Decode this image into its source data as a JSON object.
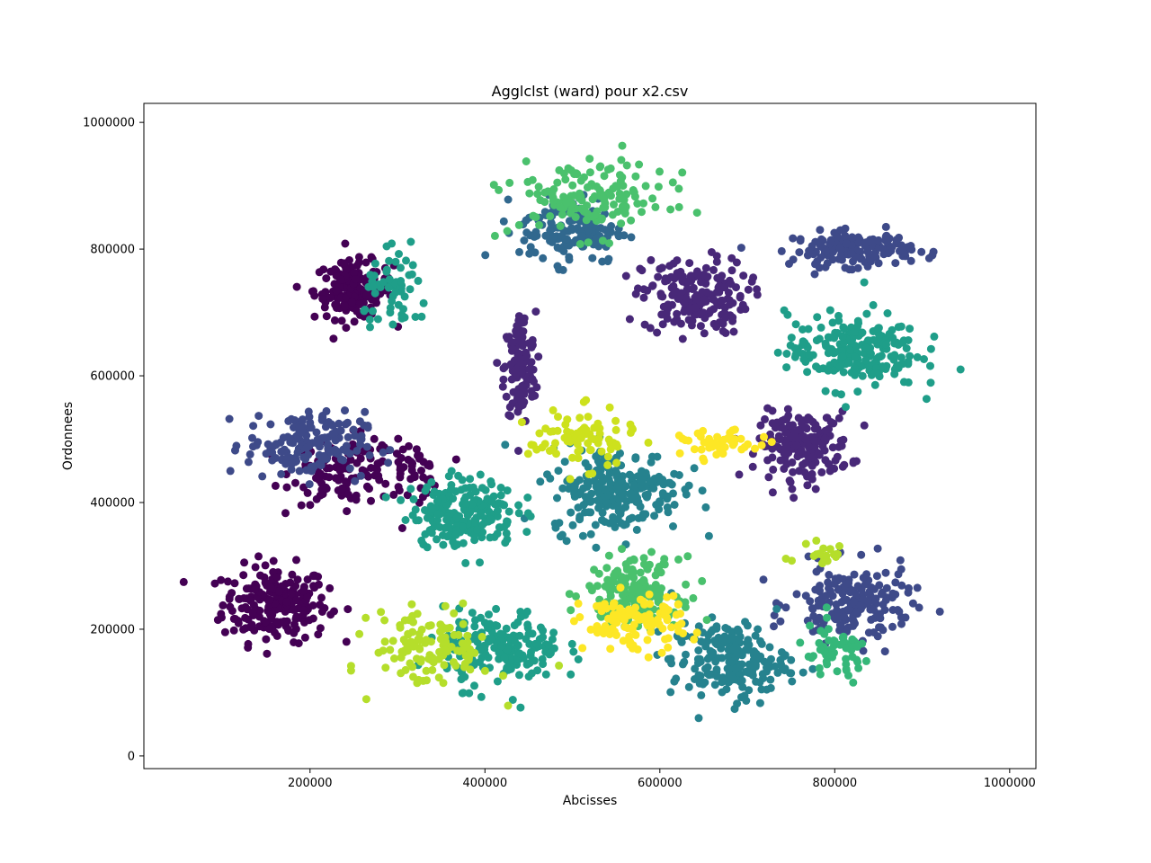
{
  "chart_data": {
    "type": "scatter",
    "title": "Agglclst (ward) pour x2.csv",
    "xlabel": "Abcisses",
    "ylabel": "Ordonnees",
    "xlim": [
      10000,
      1030000
    ],
    "ylim": [
      -20000,
      1030000
    ],
    "x_ticks": [
      200000,
      400000,
      600000,
      800000,
      1000000
    ],
    "y_ticks": [
      0,
      200000,
      400000,
      600000,
      800000,
      1000000
    ],
    "x_tick_labels": [
      "200000",
      "400000",
      "600000",
      "800000",
      "1000000"
    ],
    "y_tick_labels": [
      "0",
      "200000",
      "400000",
      "600000",
      "800000",
      "1000000"
    ],
    "grid": false,
    "legend": "none",
    "colormap": "viridis",
    "clusters": [
      {
        "color": "#440154",
        "center": [
          160000,
          240000
        ],
        "spread": [
          40000,
          40000
        ],
        "count": 230
      },
      {
        "color": "#440154",
        "center": [
          250000,
          735000
        ],
        "spread": [
          30000,
          30000
        ],
        "count": 170
      },
      {
        "color": "#440154",
        "center": [
          240000,
          450000
        ],
        "spread": [
          40000,
          35000
        ],
        "count": 120
      },
      {
        "color": "#440154",
        "center": [
          315000,
          450000
        ],
        "spread": [
          22000,
          30000
        ],
        "count": 45
      },
      {
        "color": "#482878",
        "center": [
          440000,
          610000
        ],
        "spread": [
          12000,
          60000
        ],
        "count": 130
      },
      {
        "color": "#482878",
        "center": [
          640000,
          725000
        ],
        "spread": [
          40000,
          40000
        ],
        "count": 190
      },
      {
        "color": "#482878",
        "center": [
          765000,
          490000
        ],
        "spread": [
          35000,
          35000
        ],
        "count": 190
      },
      {
        "color": "#3e4a89",
        "center": [
          820000,
          800000
        ],
        "spread": [
          45000,
          18000
        ],
        "count": 160
      },
      {
        "color": "#3e4a89",
        "center": [
          820000,
          240000
        ],
        "spread": [
          45000,
          40000
        ],
        "count": 190
      },
      {
        "color": "#3e4a89",
        "center": [
          195000,
          490000
        ],
        "spread": [
          45000,
          35000
        ],
        "count": 170
      },
      {
        "color": "#31688e",
        "center": [
          500000,
          830000
        ],
        "spread": [
          40000,
          35000
        ],
        "count": 140
      },
      {
        "color": "#26828e",
        "center": [
          550000,
          420000
        ],
        "spread": [
          50000,
          45000
        ],
        "count": 240
      },
      {
        "color": "#26828e",
        "center": [
          680000,
          150000
        ],
        "spread": [
          45000,
          40000
        ],
        "count": 200
      },
      {
        "color": "#1f9e89",
        "center": [
          820000,
          640000
        ],
        "spread": [
          50000,
          40000
        ],
        "count": 220
      },
      {
        "color": "#1f9e89",
        "center": [
          375000,
          385000
        ],
        "spread": [
          40000,
          35000
        ],
        "count": 210
      },
      {
        "color": "#1f9e89",
        "center": [
          420000,
          170000
        ],
        "spread": [
          45000,
          40000
        ],
        "count": 190
      },
      {
        "color": "#1f9e89",
        "center": [
          300000,
          730000
        ],
        "spread": [
          25000,
          40000
        ],
        "count": 60
      },
      {
        "color": "#35b779",
        "center": [
          800000,
          160000
        ],
        "spread": [
          30000,
          30000
        ],
        "count": 55
      },
      {
        "color": "#4ac16d",
        "center": [
          570000,
          260000
        ],
        "spread": [
          35000,
          35000
        ],
        "count": 170
      },
      {
        "color": "#4ac16d",
        "center": [
          520000,
          880000
        ],
        "spread": [
          60000,
          40000
        ],
        "count": 150
      },
      {
        "color": "#b5de2b",
        "center": [
          340000,
          170000
        ],
        "spread": [
          45000,
          40000
        ],
        "count": 120
      },
      {
        "color": "#b5de2b",
        "center": [
          780000,
          320000
        ],
        "spread": [
          25000,
          20000
        ],
        "count": 20
      },
      {
        "color": "#cde11d",
        "center": [
          510000,
          500000
        ],
        "spread": [
          40000,
          30000
        ],
        "count": 80
      },
      {
        "color": "#fde725",
        "center": [
          570000,
          210000
        ],
        "spread": [
          40000,
          30000
        ],
        "count": 110
      },
      {
        "color": "#fde725",
        "center": [
          670000,
          490000
        ],
        "spread": [
          30000,
          15000
        ],
        "count": 45
      }
    ]
  }
}
